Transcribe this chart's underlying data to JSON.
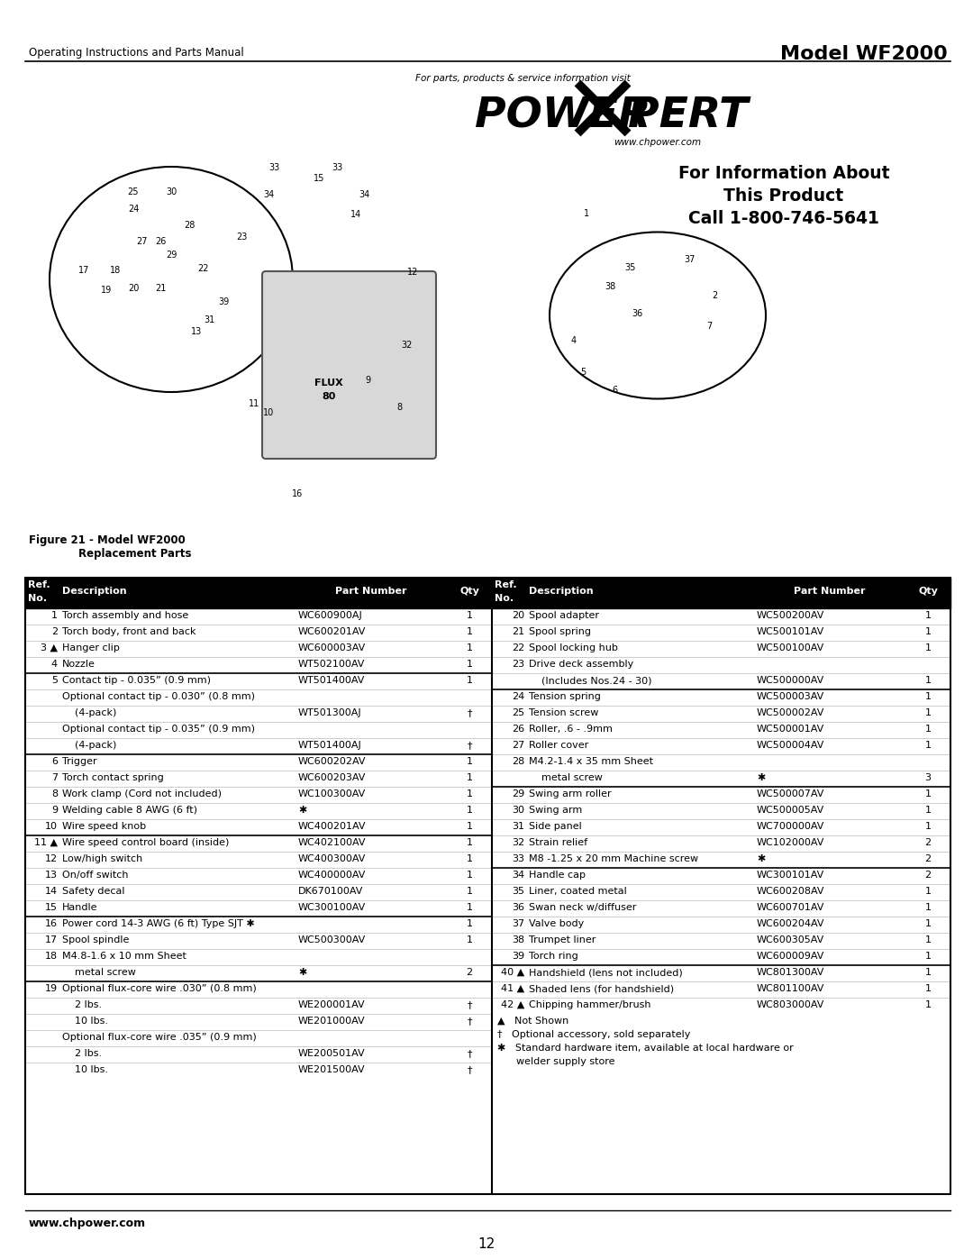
{
  "page_title_left": "Operating Instructions and Parts Manual",
  "page_title_right": "Model WF2000",
  "figure_caption_line1": "Figure 21 - Model WF2000",
  "figure_caption_line2": "Replacement Parts",
  "info_line1": "For Information About",
  "info_line2": "This Product",
  "info_line3": "Call 1-800-746-5641",
  "powerxpert_url": "www.chpower.com",
  "for_parts_text": "For parts, products & service information visit",
  "website_footer": "www.chpower.com",
  "page_number": "12",
  "bg_color": "#ffffff",
  "header_bg": "#000000",
  "header_fg": "#ffffff",
  "left_rows": [
    {
      "ref": "1",
      "desc": "Torch assembly and hose",
      "part": "WC600900AJ",
      "qty": "1",
      "thick_above": false,
      "indent": 0
    },
    {
      "ref": "2",
      "desc": "Torch body, front and back",
      "part": "WC600201AV",
      "qty": "1",
      "thick_above": false,
      "indent": 0
    },
    {
      "ref": "3 ▲",
      "desc": "Hanger clip",
      "part": "WC600003AV",
      "qty": "1",
      "thick_above": false,
      "indent": 0
    },
    {
      "ref": "4",
      "desc": "Nozzle",
      "part": "WT502100AV",
      "qty": "1",
      "thick_above": false,
      "indent": 0
    },
    {
      "ref": "5",
      "desc": "Contact tip - 0.035” (0.9 mm)",
      "part": "WT501400AV",
      "qty": "1",
      "thick_above": true,
      "indent": 0
    },
    {
      "ref": "",
      "desc": "Optional contact tip - 0.030” (0.8 mm)",
      "part": "",
      "qty": "",
      "thick_above": false,
      "indent": 0
    },
    {
      "ref": "",
      "desc": "    (4-pack)",
      "part": "WT501300AJ",
      "qty": "†",
      "thick_above": false,
      "indent": 1
    },
    {
      "ref": "",
      "desc": "Optional contact tip - 0.035” (0.9 mm)",
      "part": "",
      "qty": "",
      "thick_above": false,
      "indent": 0
    },
    {
      "ref": "",
      "desc": "    (4-pack)",
      "part": "WT501400AJ",
      "qty": "†",
      "thick_above": false,
      "indent": 1
    },
    {
      "ref": "6",
      "desc": "Trigger",
      "part": "WC600202AV",
      "qty": "1",
      "thick_above": true,
      "indent": 0
    },
    {
      "ref": "7",
      "desc": "Torch contact spring",
      "part": "WC600203AV",
      "qty": "1",
      "thick_above": false,
      "indent": 0
    },
    {
      "ref": "8",
      "desc": "Work clamp (Cord not included)",
      "part": "WC100300AV",
      "qty": "1",
      "thick_above": false,
      "indent": 0
    },
    {
      "ref": "9",
      "desc": "Welding cable 8 AWG (6 ft)",
      "part": "✱",
      "qty": "1",
      "thick_above": false,
      "indent": 0
    },
    {
      "ref": "10",
      "desc": "Wire speed knob",
      "part": "WC400201AV",
      "qty": "1",
      "thick_above": false,
      "indent": 0
    },
    {
      "ref": "11 ▲",
      "desc": "Wire speed control board (inside)",
      "part": "WC402100AV",
      "qty": "1",
      "thick_above": true,
      "indent": 0
    },
    {
      "ref": "12",
      "desc": "Low/high switch",
      "part": "WC400300AV",
      "qty": "1",
      "thick_above": false,
      "indent": 0
    },
    {
      "ref": "13",
      "desc": "On/off switch",
      "part": "WC400000AV",
      "qty": "1",
      "thick_above": false,
      "indent": 0
    },
    {
      "ref": "14",
      "desc": "Safety decal",
      "part": "DK670100AV",
      "qty": "1",
      "thick_above": false,
      "indent": 0
    },
    {
      "ref": "15",
      "desc": "Handle",
      "part": "WC300100AV",
      "qty": "1",
      "thick_above": false,
      "indent": 0
    },
    {
      "ref": "16",
      "desc": "Power cord 14-3 AWG (6 ft) Type SJT ✱",
      "part": "",
      "qty": "1",
      "thick_above": true,
      "indent": 0
    },
    {
      "ref": "17",
      "desc": "Spool spindle",
      "part": "WC500300AV",
      "qty": "1",
      "thick_above": false,
      "indent": 0
    },
    {
      "ref": "18",
      "desc": "M4.8-1.6 x 10 mm Sheet",
      "part": "",
      "qty": "",
      "thick_above": false,
      "indent": 0
    },
    {
      "ref": "",
      "desc": "    metal screw",
      "part": "✱",
      "qty": "2",
      "thick_above": false,
      "indent": 1
    },
    {
      "ref": "19",
      "desc": "Optional flux-core wire .030” (0.8 mm)",
      "part": "",
      "qty": "",
      "thick_above": true,
      "indent": 0
    },
    {
      "ref": "",
      "desc": "    2 lbs.",
      "part": "WE200001AV",
      "qty": "†",
      "thick_above": false,
      "indent": 1
    },
    {
      "ref": "",
      "desc": "    10 lbs.",
      "part": "WE201000AV",
      "qty": "†",
      "thick_above": false,
      "indent": 1
    },
    {
      "ref": "",
      "desc": "Optional flux-core wire .035” (0.9 mm)",
      "part": "",
      "qty": "",
      "thick_above": false,
      "indent": 0
    },
    {
      "ref": "",
      "desc": "    2 lbs.",
      "part": "WE200501AV",
      "qty": "†",
      "thick_above": false,
      "indent": 1
    },
    {
      "ref": "",
      "desc": "    10 lbs.",
      "part": "WE201500AV",
      "qty": "†",
      "thick_above": false,
      "indent": 1
    }
  ],
  "right_rows": [
    {
      "ref": "20",
      "desc": "Spool adapter",
      "part": "WC500200AV",
      "qty": "1",
      "thick_above": false,
      "indent": 0
    },
    {
      "ref": "21",
      "desc": "Spool spring",
      "part": "WC500101AV",
      "qty": "1",
      "thick_above": false,
      "indent": 0
    },
    {
      "ref": "22",
      "desc": "Spool locking hub",
      "part": "WC500100AV",
      "qty": "1",
      "thick_above": false,
      "indent": 0
    },
    {
      "ref": "23",
      "desc": "Drive deck assembly",
      "part": "",
      "qty": "",
      "thick_above": false,
      "indent": 0
    },
    {
      "ref": "",
      "desc": "    (Includes Nos.24 - 30)",
      "part": "WC500000AV",
      "qty": "1",
      "thick_above": false,
      "indent": 1
    },
    {
      "ref": "24",
      "desc": "Tension spring",
      "part": "WC500003AV",
      "qty": "1",
      "thick_above": true,
      "indent": 0
    },
    {
      "ref": "25",
      "desc": "Tension screw",
      "part": "WC500002AV",
      "qty": "1",
      "thick_above": false,
      "indent": 0
    },
    {
      "ref": "26",
      "desc": "Roller, .6 - .9mm",
      "part": "WC500001AV",
      "qty": "1",
      "thick_above": false,
      "indent": 0
    },
    {
      "ref": "27",
      "desc": "Roller cover",
      "part": "WC500004AV",
      "qty": "1",
      "thick_above": false,
      "indent": 0
    },
    {
      "ref": "28",
      "desc": "M4.2-1.4 x 35 mm Sheet",
      "part": "",
      "qty": "",
      "thick_above": false,
      "indent": 0
    },
    {
      "ref": "",
      "desc": "    metal screw",
      "part": "✱",
      "qty": "3",
      "thick_above": false,
      "indent": 1
    },
    {
      "ref": "29",
      "desc": "Swing arm roller",
      "part": "WC500007AV",
      "qty": "1",
      "thick_above": true,
      "indent": 0
    },
    {
      "ref": "30",
      "desc": "Swing arm",
      "part": "WC500005AV",
      "qty": "1",
      "thick_above": false,
      "indent": 0
    },
    {
      "ref": "31",
      "desc": "Side panel",
      "part": "WC700000AV",
      "qty": "1",
      "thick_above": false,
      "indent": 0
    },
    {
      "ref": "32",
      "desc": "Strain relief",
      "part": "WC102000AV",
      "qty": "2",
      "thick_above": false,
      "indent": 0
    },
    {
      "ref": "33",
      "desc": "M8 -1.25 x 20 mm Machine screw",
      "part": "✱",
      "qty": "2",
      "thick_above": false,
      "indent": 0
    },
    {
      "ref": "34",
      "desc": "Handle cap",
      "part": "WC300101AV",
      "qty": "2",
      "thick_above": true,
      "indent": 0
    },
    {
      "ref": "35",
      "desc": "Liner, coated metal",
      "part": "WC600208AV",
      "qty": "1",
      "thick_above": false,
      "indent": 0
    },
    {
      "ref": "36",
      "desc": "Swan neck w/diffuser",
      "part": "WC600701AV",
      "qty": "1",
      "thick_above": false,
      "indent": 0
    },
    {
      "ref": "37",
      "desc": "Valve body",
      "part": "WC600204AV",
      "qty": "1",
      "thick_above": false,
      "indent": 0
    },
    {
      "ref": "38",
      "desc": "Trumpet liner",
      "part": "WC600305AV",
      "qty": "1",
      "thick_above": false,
      "indent": 0
    },
    {
      "ref": "39",
      "desc": "Torch ring",
      "part": "WC600009AV",
      "qty": "1",
      "thick_above": false,
      "indent": 0
    },
    {
      "ref": "40 ▲",
      "desc": "Handshield (lens not included)",
      "part": "WC801300AV",
      "qty": "1",
      "thick_above": true,
      "indent": 0
    },
    {
      "ref": "41 ▲",
      "desc": "Shaded lens (for handshield)",
      "part": "WC801100AV",
      "qty": "1",
      "thick_above": false,
      "indent": 0
    },
    {
      "ref": "42 ▲",
      "desc": "Chipping hammer/brush",
      "part": "WC803000AV",
      "qty": "1",
      "thick_above": false,
      "indent": 0
    }
  ],
  "footnote1": "▲   Not Shown",
  "footnote2": "†   Optional accessory, sold separately",
  "footnote3": "✱   Standard hardware item, available at local hardware or",
  "footnote4": "      welder supply store"
}
